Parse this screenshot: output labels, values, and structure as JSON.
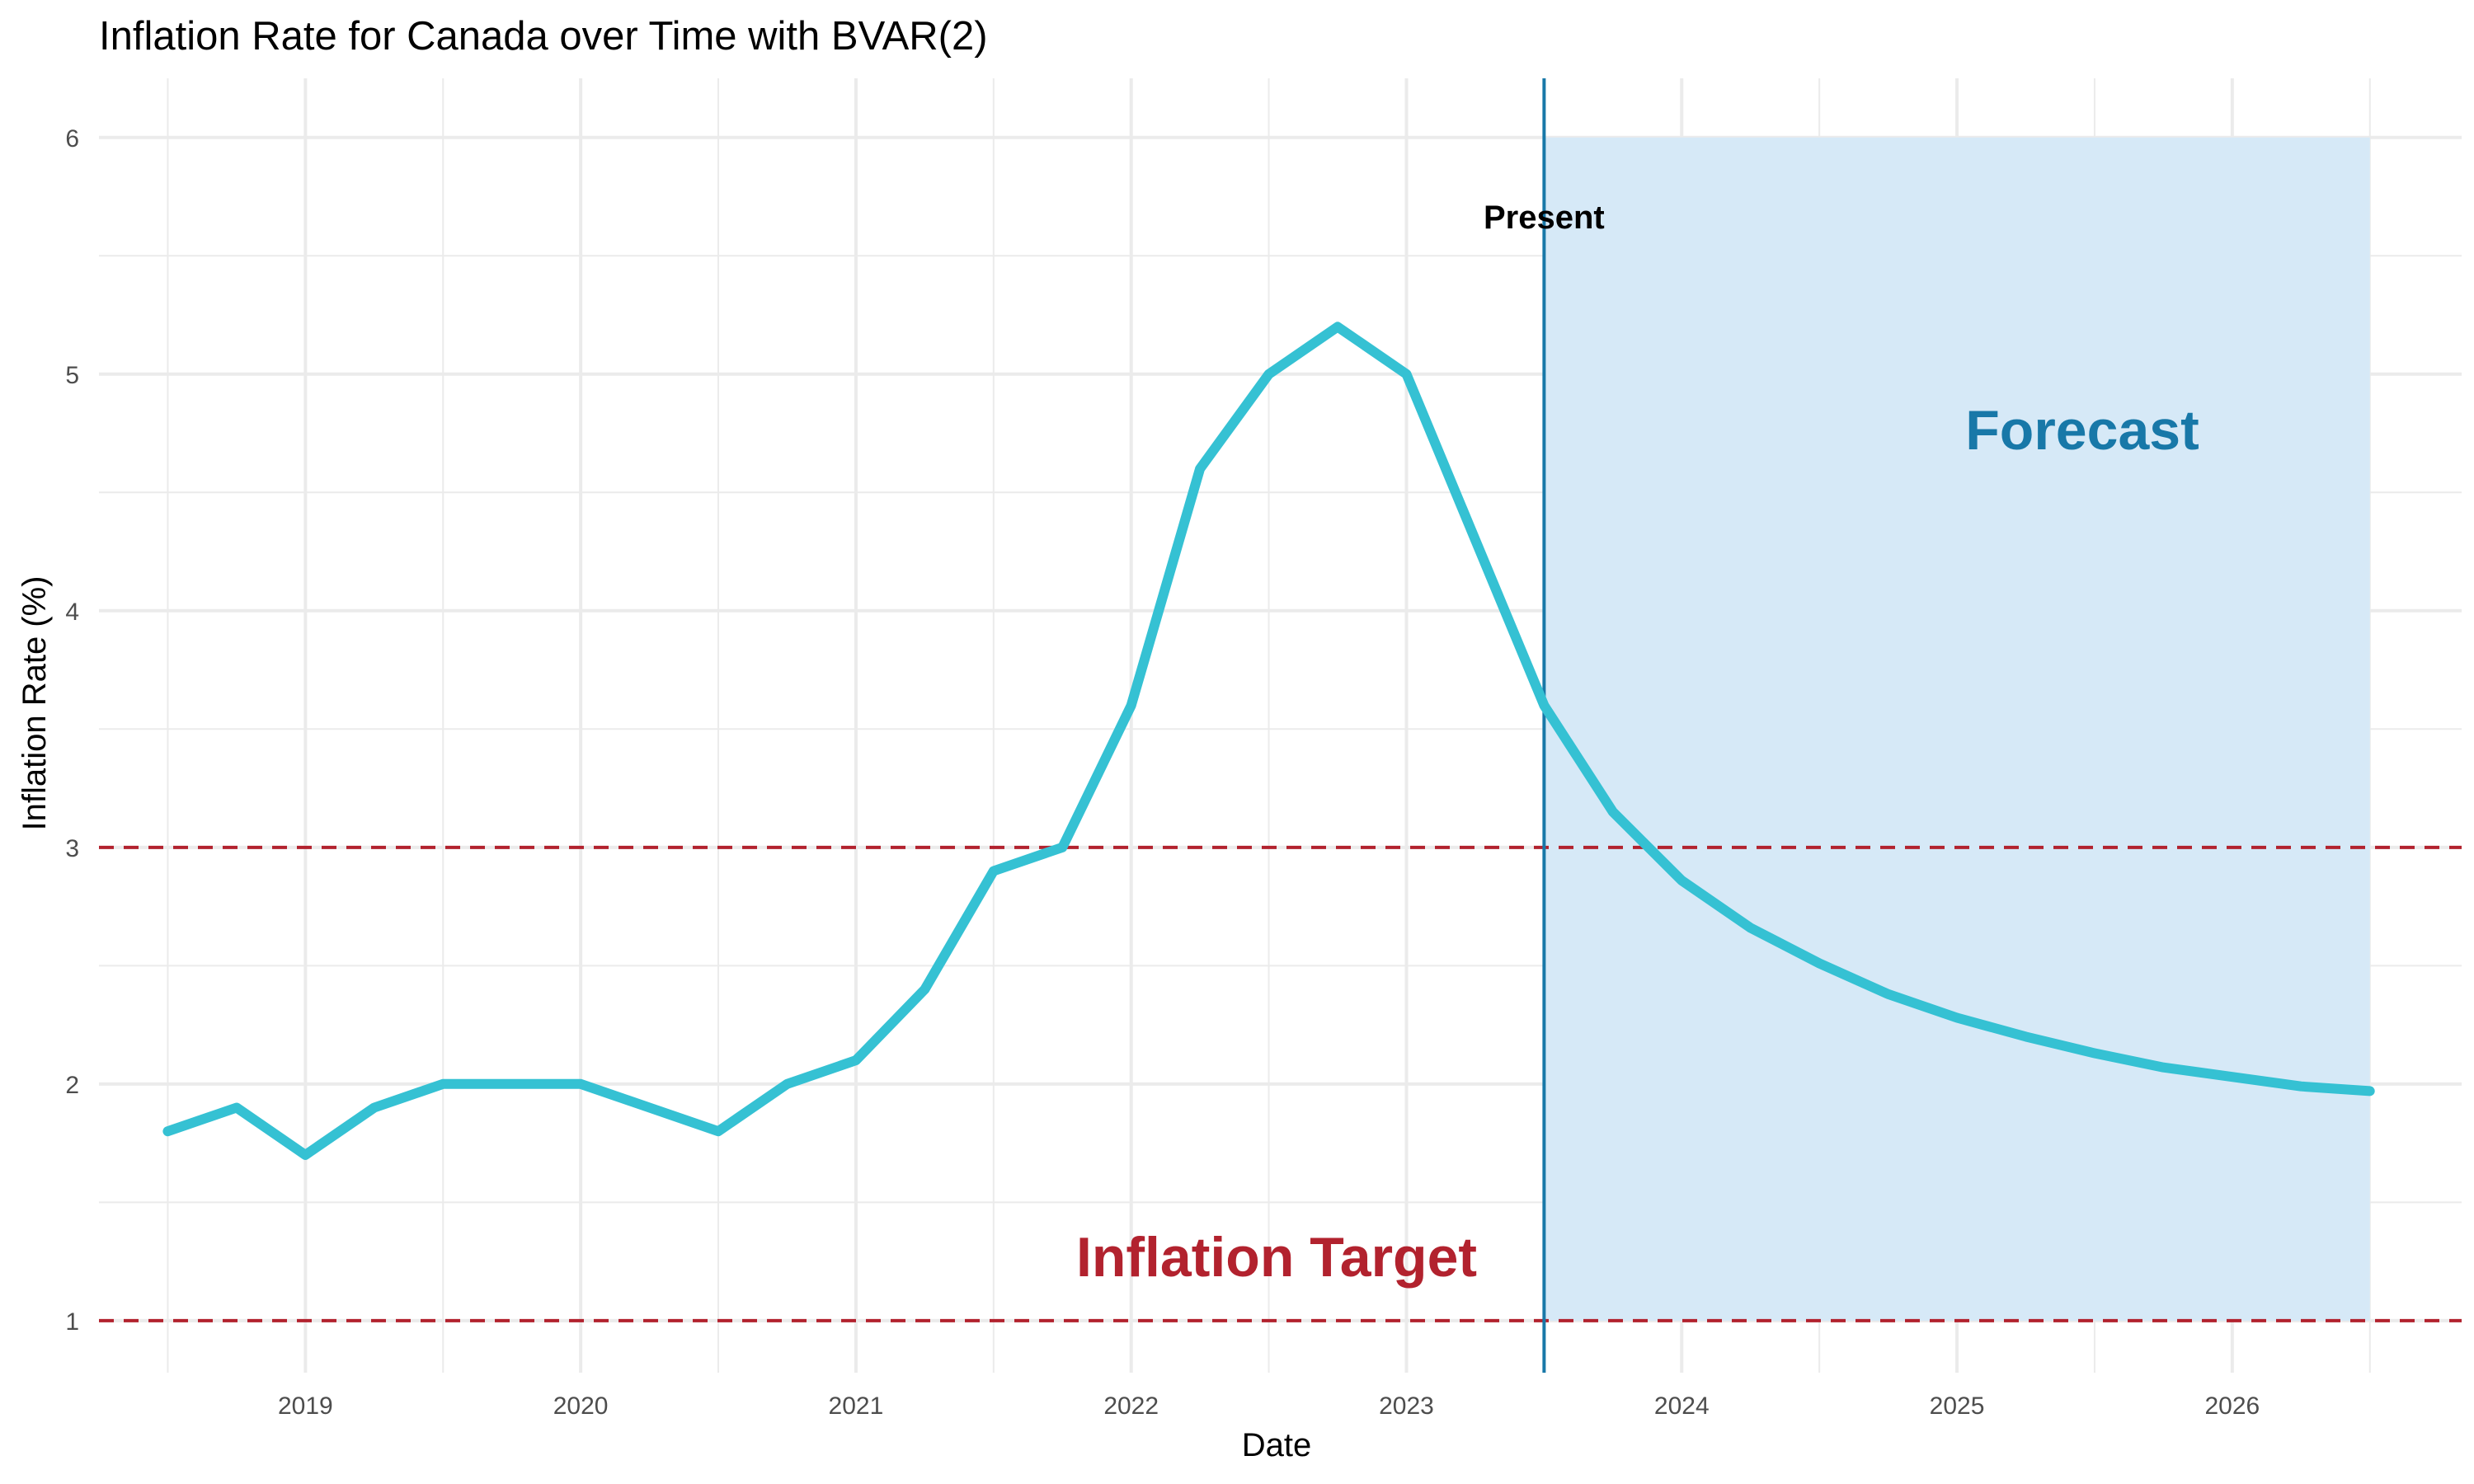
{
  "chart_data": {
    "type": "line",
    "title": "Inflation Rate for Canada over Time with BVAR(2)",
    "xlabel": "Date",
    "ylabel": "Inflation Rate (%)",
    "ylim": [
      0.78,
      6.25
    ],
    "xlim": [
      "2018-04-01",
      "2026-11-01"
    ],
    "y_ticks": [
      "1",
      "2",
      "3",
      "4",
      "5",
      "6"
    ],
    "x_ticks": [
      "2019",
      "2020",
      "2021",
      "2022",
      "2023",
      "2024",
      "2025",
      "2026"
    ],
    "grid": true,
    "colors": {
      "series": "#35C1D3",
      "target_line": "#B2222E",
      "present_line": "#1878A8",
      "forecast_fill": "#D6E9F7",
      "forecast_text": "#1878A8",
      "target_text": "#B2222E",
      "grid": "#EBEBEB"
    },
    "series": [
      {
        "x": [
          "2018-07-01",
          "2018-10-01",
          "2019-01-01",
          "2019-04-01",
          "2019-07-01",
          "2019-10-01",
          "2020-01-01",
          "2020-04-01",
          "2020-07-01",
          "2020-10-01",
          "2021-01-01",
          "2021-04-01",
          "2021-07-01",
          "2021-10-01",
          "2022-01-01",
          "2022-04-01",
          "2022-07-01",
          "2022-10-01",
          "2023-01-01",
          "2023-04-01",
          "2023-07-01",
          "2023-10-01",
          "2024-01-01",
          "2024-04-01",
          "2024-07-01",
          "2024-10-01",
          "2025-01-01",
          "2025-04-01",
          "2025-07-01",
          "2025-10-01",
          "2026-01-01",
          "2026-04-01",
          "2026-07-01"
        ],
        "values": [
          1.8,
          1.9,
          1.7,
          1.9,
          2.0,
          2.0,
          2.0,
          1.9,
          1.8,
          2.0,
          2.1,
          2.4,
          2.9,
          3.0,
          3.6,
          4.6,
          5.0,
          5.2,
          5.0,
          4.3,
          3.6,
          3.15,
          2.86,
          2.66,
          2.51,
          2.38,
          2.28,
          2.2,
          2.13,
          2.07,
          2.03,
          1.99,
          1.97
        ]
      }
    ],
    "target_lines": [
      1,
      3
    ],
    "present_date": "2023-07-01",
    "present_label": "Present",
    "forecast_region": {
      "x": [
        "2023-07-01",
        "2026-07-01"
      ],
      "y": [
        1,
        6
      ]
    },
    "forecast_label": "Forecast",
    "target_label": "Inflation Target"
  }
}
